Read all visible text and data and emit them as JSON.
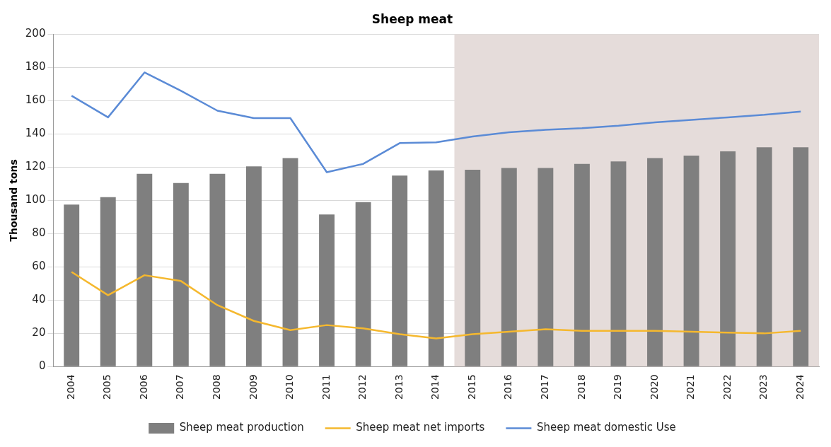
{
  "chart_data": {
    "type": "bar",
    "title": "Sheep meat",
    "ylabel": "Thousand tons",
    "categories": [
      "2004",
      "2005",
      "2006",
      "2007",
      "2008",
      "2009",
      "2010",
      "2011",
      "2012",
      "2013",
      "2014",
      "2015",
      "2016",
      "2017",
      "2018",
      "2019",
      "2020",
      "2021",
      "2022",
      "2023",
      "2024"
    ],
    "series": [
      {
        "name": "Sheep meat production",
        "color": "#7f7f7f",
        "values": [
          97.5,
          102,
          116,
          110.5,
          116,
          120.5,
          125.5,
          91.5,
          99,
          115,
          118,
          118.5,
          119.5,
          119.5,
          122,
          123.5,
          125.5,
          127,
          129.5,
          132,
          132
        ]
      },
      {
        "name": "Sheep meat net imports",
        "type": "line",
        "color": "#f5b82e",
        "values": [
          57,
          43,
          55,
          51.5,
          37,
          27.5,
          22,
          25,
          23,
          19.5,
          17,
          19.5,
          21,
          22.5,
          21.5,
          21.5,
          21.5,
          21,
          20.5,
          20,
          21.5
        ]
      },
      {
        "name": "Sheep meat domestic Use",
        "type": "line",
        "color": "#5b8bd6",
        "values": [
          163,
          150,
          177,
          166,
          154,
          149.5,
          149.5,
          117,
          122,
          134.5,
          135,
          138.5,
          141,
          142.5,
          143.5,
          145,
          147,
          148.5,
          150,
          151.5,
          153.5
        ]
      }
    ],
    "ylim": [
      0,
      200
    ],
    "yticks": [
      0,
      20,
      40,
      60,
      80,
      100,
      120,
      140,
      160,
      180,
      200
    ],
    "bands": [
      {
        "axis": "x",
        "from": "2015",
        "to": "2024",
        "color": "#e5dcda"
      }
    ],
    "grid": "y",
    "legend": "bottom",
    "marker": "none",
    "line_style": "solid"
  }
}
